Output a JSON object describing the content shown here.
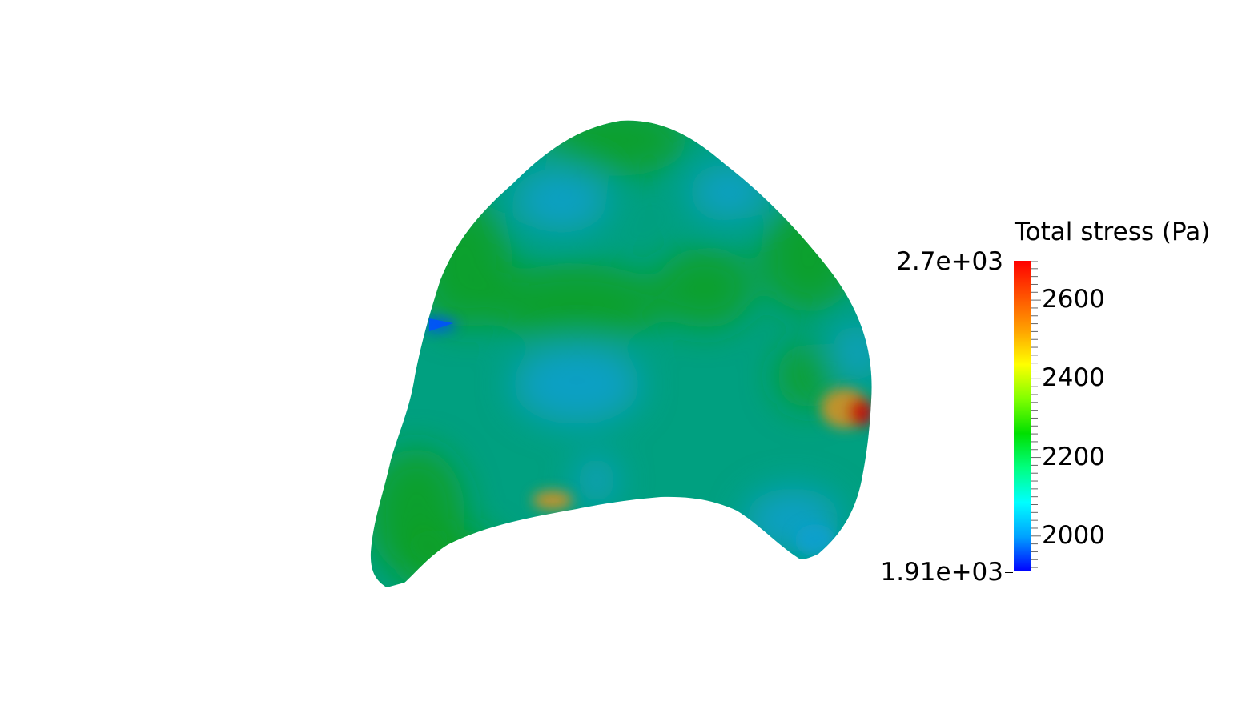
{
  "legend": {
    "title": "Total stress (Pa)",
    "range_max_label": "2.7e+03",
    "range_min_label": "1.91e+03",
    "range_max": 2700,
    "range_min": 1910,
    "tick_labels": [
      {
        "value": 2600,
        "label": "2600"
      },
      {
        "value": 2400,
        "label": "2400"
      },
      {
        "value": 2200,
        "label": "2200"
      },
      {
        "value": 2000,
        "label": "2000"
      }
    ],
    "colormap": [
      "#0000ff",
      "#00a0ff",
      "#00ffff",
      "#00ff80",
      "#00e000",
      "#80ff00",
      "#ffff00",
      "#ffa000",
      "#ff5000",
      "#ff0000"
    ]
  },
  "surface": {
    "colors": {
      "base": "#00a080",
      "green": "#10a020",
      "blue": "#10a0d0",
      "deep_blue": "#0050ff",
      "hot": "#c01010",
      "warm": "#e09020"
    }
  }
}
